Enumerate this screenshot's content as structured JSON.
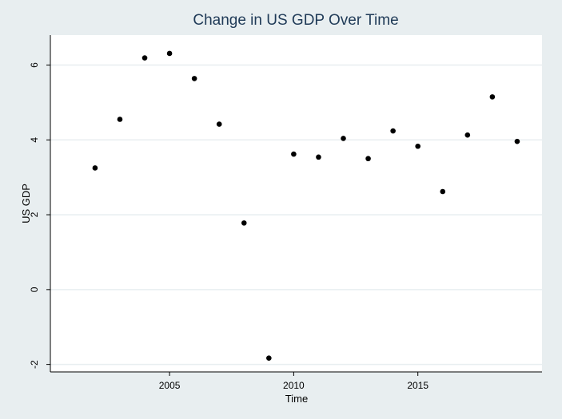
{
  "chart_data": {
    "type": "scatter",
    "title": "Change in US GDP Over Time",
    "xlabel": "Time",
    "ylabel": "US GDP",
    "xlim": [
      2000.2,
      2020.0
    ],
    "ylim": [
      -2.2,
      6.8
    ],
    "xticks": [
      2005,
      2010,
      2015
    ],
    "yticks": [
      -2,
      0,
      2,
      4,
      6
    ],
    "grid": "horizontal",
    "colors": {
      "background": "#e8eef0",
      "plot_area": "#ffffff",
      "grid": "#e8eef0",
      "point": "#000000",
      "title": "#1f3a57"
    },
    "x": [
      2002,
      2003,
      2004,
      2005,
      2006,
      2007,
      2008,
      2009,
      2010,
      2011,
      2012,
      2013,
      2014,
      2015,
      2016,
      2017,
      2018,
      2019
    ],
    "y": [
      3.25,
      4.55,
      6.19,
      6.31,
      5.64,
      4.42,
      1.78,
      -1.83,
      3.62,
      3.54,
      4.04,
      3.5,
      4.24,
      3.83,
      2.62,
      4.13,
      5.15,
      3.96
    ]
  }
}
